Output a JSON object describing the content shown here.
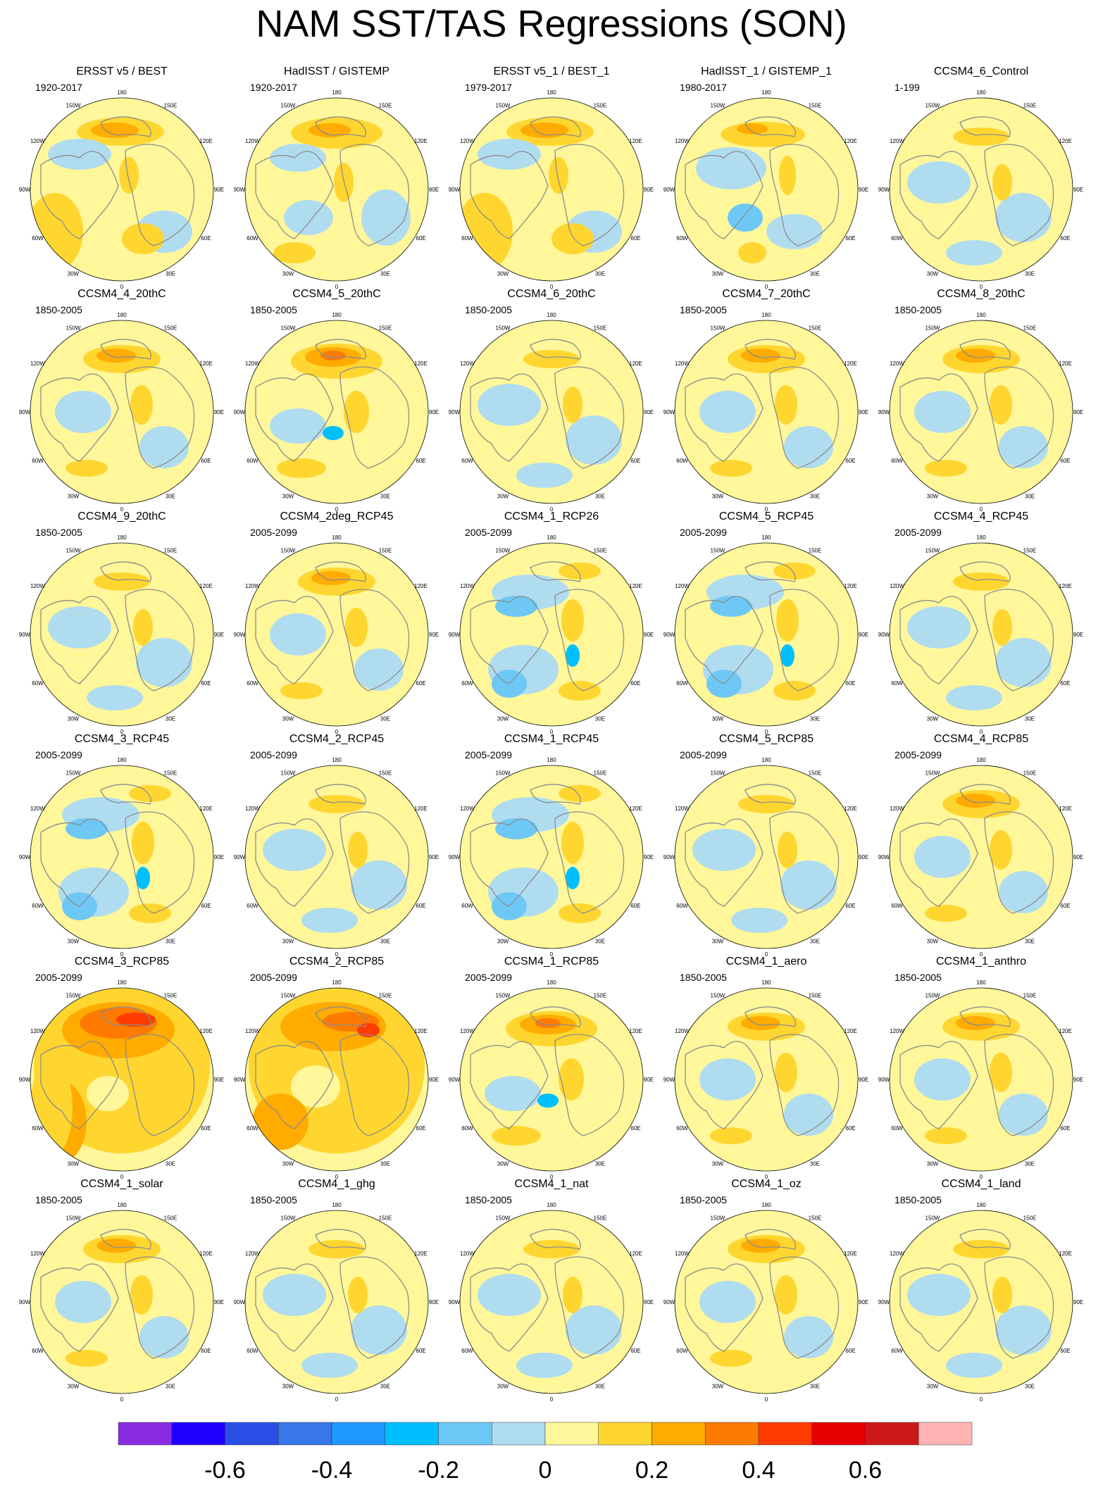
{
  "title": "NAM SST/TAS Regressions (SON)",
  "panels": [
    {
      "title": "ERSST v5 / BEST",
      "period": "1920-2017",
      "style": "obs"
    },
    {
      "title": "HadISST / GISTEMP",
      "period": "1920-2017",
      "style": "obs2"
    },
    {
      "title": "ERSST v5_1 / BEST_1",
      "period": "1979-2017",
      "style": "obs"
    },
    {
      "title": "HadISST_1 / GISTEMP_1",
      "period": "1980-2017",
      "style": "obs3"
    },
    {
      "title": "CCSM4_6_Control",
      "period": "1-199",
      "style": "weak"
    },
    {
      "title": "CCSM4_4_20thC",
      "period": "1850-2005",
      "style": "mid"
    },
    {
      "title": "CCSM4_5_20thC",
      "period": "1850-2005",
      "style": "strong"
    },
    {
      "title": "CCSM4_6_20thC",
      "period": "1850-2005",
      "style": "weak"
    },
    {
      "title": "CCSM4_7_20thC",
      "period": "1850-2005",
      "style": "mid"
    },
    {
      "title": "CCSM4_8_20thC",
      "period": "1850-2005",
      "style": "mid"
    },
    {
      "title": "CCSM4_9_20thC",
      "period": "1850-2005",
      "style": "weak"
    },
    {
      "title": "CCSM4_2deg_RCP45",
      "period": "2005-2099",
      "style": "mid"
    },
    {
      "title": "CCSM4_1_RCP26",
      "period": "2005-2099",
      "style": "cool"
    },
    {
      "title": "CCSM4_5_RCP45",
      "period": "2005-2099",
      "style": "cool"
    },
    {
      "title": "CCSM4_4_RCP45",
      "period": "2005-2099",
      "style": "weak"
    },
    {
      "title": "CCSM4_3_RCP45",
      "period": "2005-2099",
      "style": "cool"
    },
    {
      "title": "CCSM4_2_RCP45",
      "period": "2005-2099",
      "style": "weak"
    },
    {
      "title": "CCSM4_1_RCP45",
      "period": "2005-2099",
      "style": "cool"
    },
    {
      "title": "CCSM4_5_RCP85",
      "period": "2005-2099",
      "style": "weak"
    },
    {
      "title": "CCSM4_4_RCP85",
      "period": "2005-2099",
      "style": "mid"
    },
    {
      "title": "CCSM4_3_RCP85",
      "period": "2005-2099",
      "style": "hot"
    },
    {
      "title": "CCSM4_2_RCP85",
      "period": "2005-2099",
      "style": "hot2"
    },
    {
      "title": "CCSM4_1_RCP85",
      "period": "2005-2099",
      "style": "strong"
    },
    {
      "title": "CCSM4_1_aero",
      "period": "1850-2005",
      "style": "mid"
    },
    {
      "title": "CCSM4_1_anthro",
      "period": "1850-2005",
      "style": "mid"
    },
    {
      "title": "CCSM4_1_solar",
      "period": "1850-2005",
      "style": "mid"
    },
    {
      "title": "CCSM4_1_ghg",
      "period": "1850-2005",
      "style": "weak"
    },
    {
      "title": "CCSM4_1_nat",
      "period": "1850-2005",
      "style": "weak"
    },
    {
      "title": "CCSM4_1_oz",
      "period": "1850-2005",
      "style": "mid"
    },
    {
      "title": "CCSM4_1_land",
      "period": "1850-2005",
      "style": "weak"
    }
  ],
  "longitude_labels": [
    "180",
    "150E",
    "120E",
    "90E",
    "60E",
    "30E",
    "0",
    "30W",
    "60W",
    "90W",
    "120W",
    "150W"
  ],
  "colorbar": {
    "colors": [
      "#8a2be2",
      "#1e00ff",
      "#2a4fe6",
      "#3777e8",
      "#1f99ff",
      "#00bfff",
      "#6ec8f5",
      "#b0dcf0",
      "#fff799",
      "#ffd630",
      "#ffab00",
      "#ff7a00",
      "#ff3c00",
      "#e60000",
      "#cc1a1a",
      "#ffb4b4"
    ],
    "labels": [
      "-0.6",
      "-0.4",
      "-0.2",
      "0",
      "0.2",
      "0.4",
      "0.6"
    ],
    "label_values": [
      -0.6,
      -0.4,
      -0.2,
      0,
      0.2,
      0.4,
      0.6
    ],
    "min": -0.8,
    "max": 0.8
  }
}
